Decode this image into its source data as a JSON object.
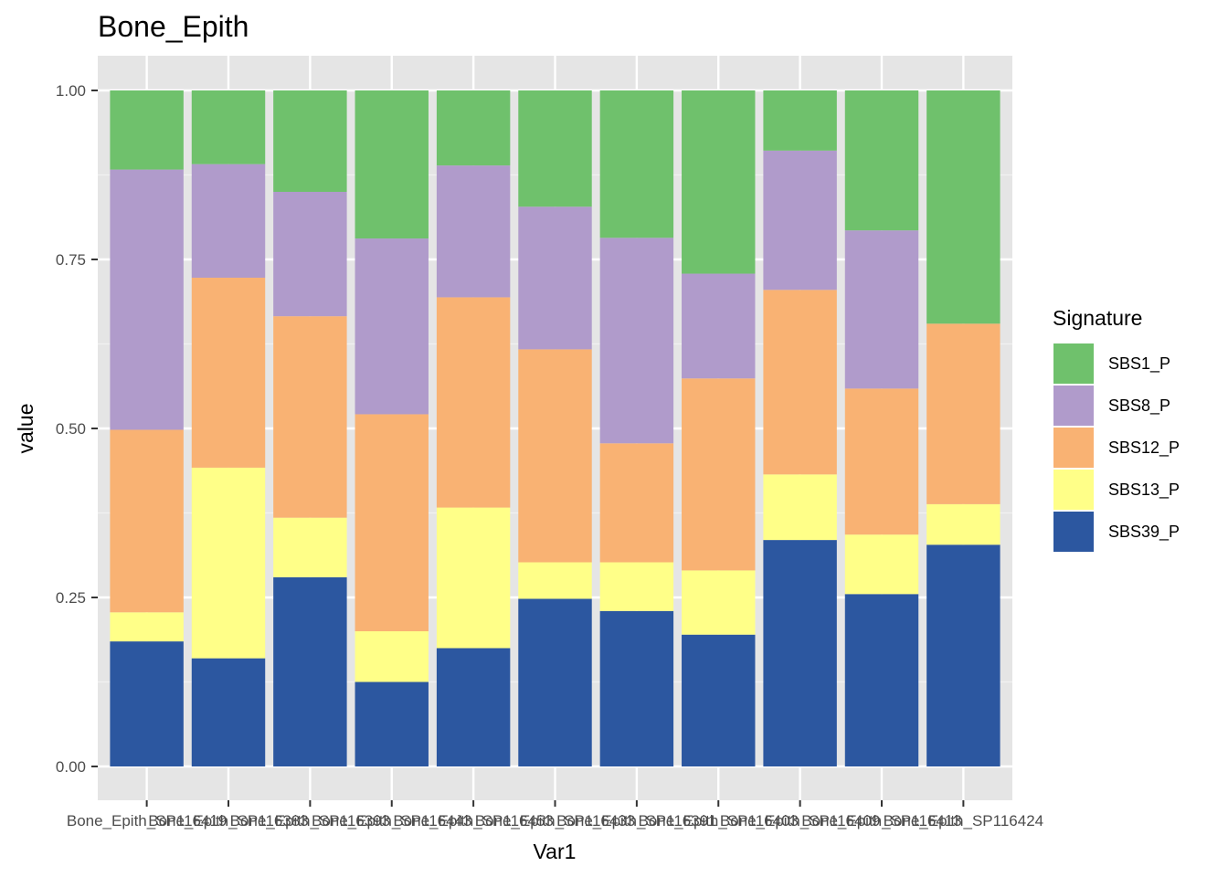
{
  "chart_data": {
    "type": "bar",
    "stacked": true,
    "title": "Bone_Epith",
    "xlabel": "Var1",
    "ylabel": "value",
    "ylim": [
      0,
      1
    ],
    "yticks": [
      "0.00",
      "0.25",
      "0.50",
      "0.75",
      "1.00"
    ],
    "grid": true,
    "legend_title": "Signature",
    "legend_position": "right",
    "categories": [
      "Bone_Epith_SP116419",
      "Bone_Epith_SP116383",
      "Bone_Epith_SP116393",
      "Bone_Epith_SP116443",
      "Bone_Epith_SP116453",
      "Bone_Epith_SP116433",
      "Bone_Epith_SP116391",
      "Bone_Epith_SP116403",
      "Bone_Epith_SP116409",
      "Bone_Epith_SP116413",
      "Bone_Epith_SP116424"
    ],
    "series": [
      {
        "name": "SBS39_P",
        "color": "#2c57a0",
        "values": [
          0.185,
          0.16,
          0.28,
          0.125,
          0.175,
          0.248,
          0.23,
          0.195,
          0.335,
          0.255,
          0.328
        ]
      },
      {
        "name": "SBS13_P",
        "color": "#ffff88",
        "values": [
          0.043,
          0.282,
          0.088,
          0.075,
          0.208,
          0.054,
          0.072,
          0.095,
          0.097,
          0.088,
          0.06
        ]
      },
      {
        "name": "SBS12_P",
        "color": "#f9b273",
        "values": [
          0.27,
          0.281,
          0.298,
          0.321,
          0.311,
          0.315,
          0.176,
          0.284,
          0.273,
          0.216,
          0.267
        ]
      },
      {
        "name": "SBS8_P",
        "color": "#b09bcb",
        "values": [
          0.385,
          0.168,
          0.184,
          0.26,
          0.195,
          0.211,
          0.304,
          0.155,
          0.206,
          0.234,
          0.0
        ]
      },
      {
        "name": "SBS1_P",
        "color": "#6fc16c",
        "values": [
          0.117,
          0.109,
          0.15,
          0.219,
          0.111,
          0.172,
          0.218,
          0.271,
          0.089,
          0.207,
          0.345
        ]
      }
    ],
    "legend_order": [
      "SBS1_P",
      "SBS8_P",
      "SBS12_P",
      "SBS13_P",
      "SBS39_P"
    ]
  },
  "colors": {
    "panel_background": "#e5e5e5",
    "grid_major": "#ffffff",
    "grid_minor": "#f2f2f2"
  }
}
